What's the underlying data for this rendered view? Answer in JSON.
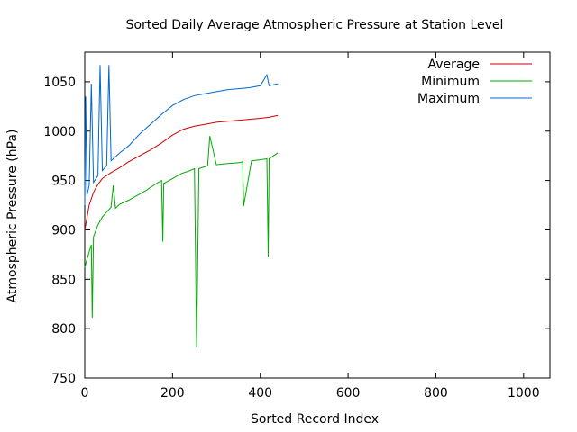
{
  "chart_data": {
    "type": "line",
    "title": "Sorted Daily Average Atmospheric Pressure at Station Level",
    "xlabel": "Sorted Record Index",
    "ylabel": "Atmospheric Pressure (hPa)",
    "xlim": [
      0,
      1060
    ],
    "ylim": [
      750,
      1080
    ],
    "xticks": [
      0,
      200,
      400,
      600,
      800,
      1000
    ],
    "yticks": [
      750,
      800,
      850,
      900,
      950,
      1000,
      1050
    ],
    "grid": false,
    "legend_position": "top-right",
    "series_summary_note": "",
    "series": [
      {
        "name": "Average",
        "color": "#cc0000",
        "x": [
          0,
          5,
          10,
          20,
          30,
          40,
          50,
          60,
          80,
          100,
          125,
          150,
          175,
          200,
          225,
          250,
          275,
          300,
          325,
          350,
          375,
          400,
          420,
          440
        ],
        "y": [
          900,
          912,
          925,
          938,
          946,
          952,
          955,
          958,
          963,
          969,
          975,
          981,
          988,
          996,
          1002,
          1005,
          1007,
          1009,
          1010,
          1011,
          1012,
          1013,
          1014,
          1016
        ]
      },
      {
        "name": "Minimum",
        "color": "#00aa00",
        "x": [
          0,
          5,
          10,
          15,
          17,
          20,
          30,
          40,
          50,
          60,
          65,
          70,
          80,
          100,
          120,
          140,
          160,
          175,
          178,
          180,
          200,
          220,
          240,
          250,
          255,
          260,
          280,
          285,
          300,
          320,
          350,
          360,
          362,
          380,
          400,
          415,
          418,
          420,
          430,
          440
        ],
        "y": [
          862,
          870,
          878,
          885,
          811,
          893,
          905,
          913,
          918,
          923,
          945,
          922,
          926,
          930,
          935,
          940,
          946,
          950,
          888,
          947,
          952,
          957,
          960,
          962,
          781,
          962,
          965,
          995,
          966,
          967,
          968,
          969,
          924,
          970,
          971,
          972,
          873,
          972,
          975,
          978
        ]
      },
      {
        "name": "Maximum",
        "color": "#0066cc",
        "x": [
          0,
          2,
          5,
          10,
          15,
          20,
          30,
          35,
          40,
          50,
          55,
          60,
          80,
          100,
          125,
          150,
          175,
          200,
          225,
          250,
          275,
          300,
          325,
          350,
          375,
          400,
          415,
          420,
          430,
          440
        ],
        "y": [
          925,
          1035,
          935,
          945,
          1048,
          948,
          955,
          1067,
          960,
          965,
          1067,
          970,
          978,
          985,
          997,
          1007,
          1017,
          1026,
          1032,
          1036,
          1038,
          1040,
          1042,
          1043,
          1044,
          1046,
          1057,
          1046,
          1047,
          1048
        ]
      }
    ]
  }
}
